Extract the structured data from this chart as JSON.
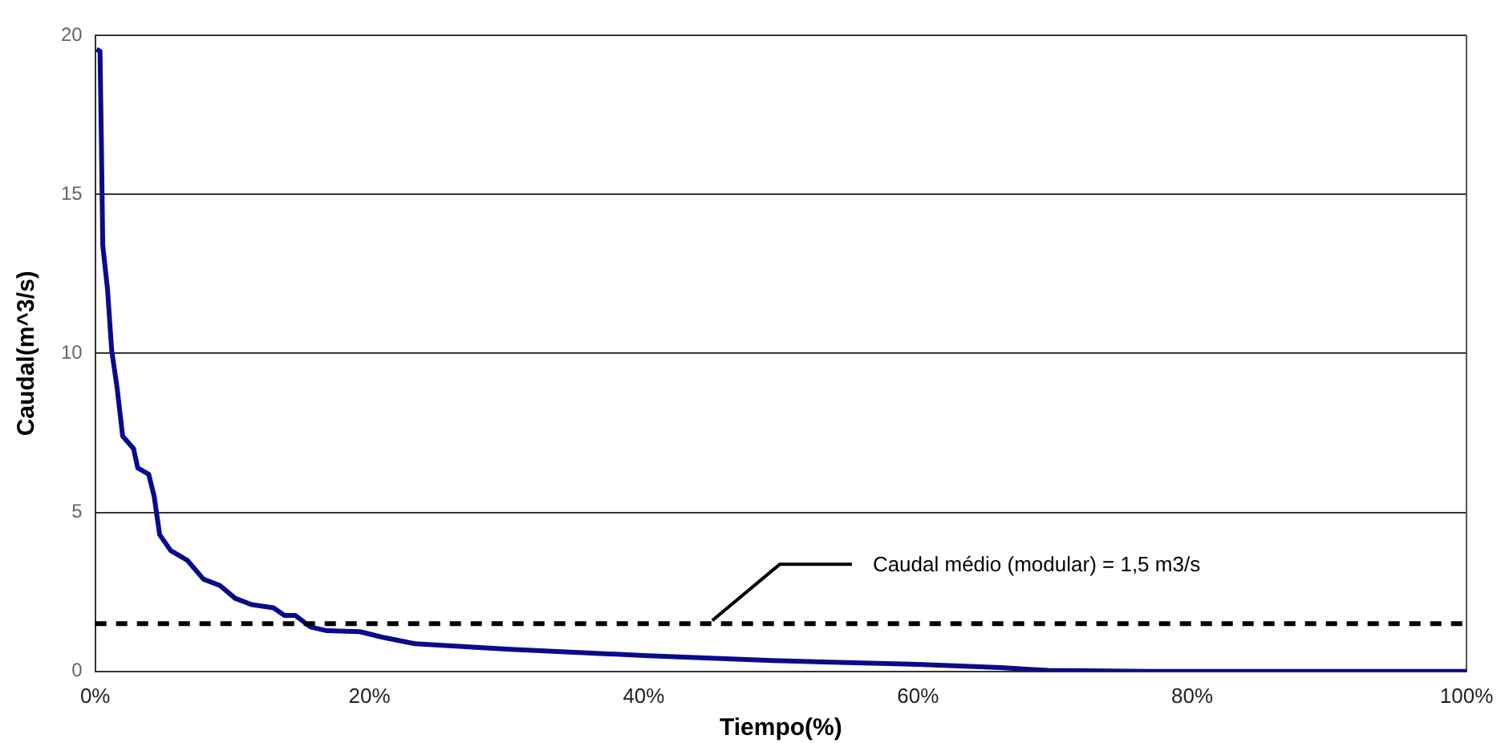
{
  "chart_data": {
    "type": "line",
    "xlabel": "Tiempo(%)",
    "ylabel": "Caudal(m^3/s)",
    "x": [
      0.1,
      0.35,
      0.45,
      0.55,
      0.9,
      1.2,
      1.6,
      2.0,
      2.8,
      3.1,
      3.9,
      4.3,
      4.7,
      5.5,
      6.7,
      7.9,
      9.1,
      10.2,
      11.4,
      13.0,
      13.8,
      14.6,
      15.7,
      16.9,
      19.3,
      20.9,
      23.3,
      30,
      40,
      49.4,
      60,
      66,
      69.5,
      77,
      100
    ],
    "series": [
      {
        "color": "#0a0a8c",
        "values": [
          19.56,
          19.5,
          16.6,
          13.4,
          12.0,
          10.1,
          8.9,
          7.4,
          7.0,
          6.4,
          6.2,
          5.5,
          4.3,
          3.8,
          3.5,
          2.9,
          2.7,
          2.3,
          2.1,
          2.0,
          1.76,
          1.76,
          1.4,
          1.28,
          1.25,
          1.08,
          0.87,
          0.7,
          0.5,
          0.34,
          0.22,
          0.12,
          0.03,
          0,
          0
        ]
      }
    ],
    "xlim": [
      0,
      100
    ],
    "xticks": [
      {
        "value": 0,
        "label": "0%"
      },
      {
        "value": 20,
        "label": "20%"
      },
      {
        "value": 40,
        "label": "40%"
      },
      {
        "value": 60,
        "label": "60%"
      },
      {
        "value": 80,
        "label": "80%"
      },
      {
        "value": 100,
        "label": "100%"
      }
    ],
    "ylim": [
      0,
      20
    ],
    "yticks": [
      0,
      5,
      10,
      15,
      20
    ],
    "grid": "y",
    "legend": false,
    "marker": "none",
    "line_style": "solid",
    "ref_lines": [
      {
        "axis": "y",
        "value": 1.5,
        "color": "#000000",
        "line_style": "dashed"
      }
    ],
    "annotations": [
      {
        "text": "Caudal médio (modular) = 1,5 m3/s",
        "x": 45,
        "y": 1.5
      }
    ]
  }
}
